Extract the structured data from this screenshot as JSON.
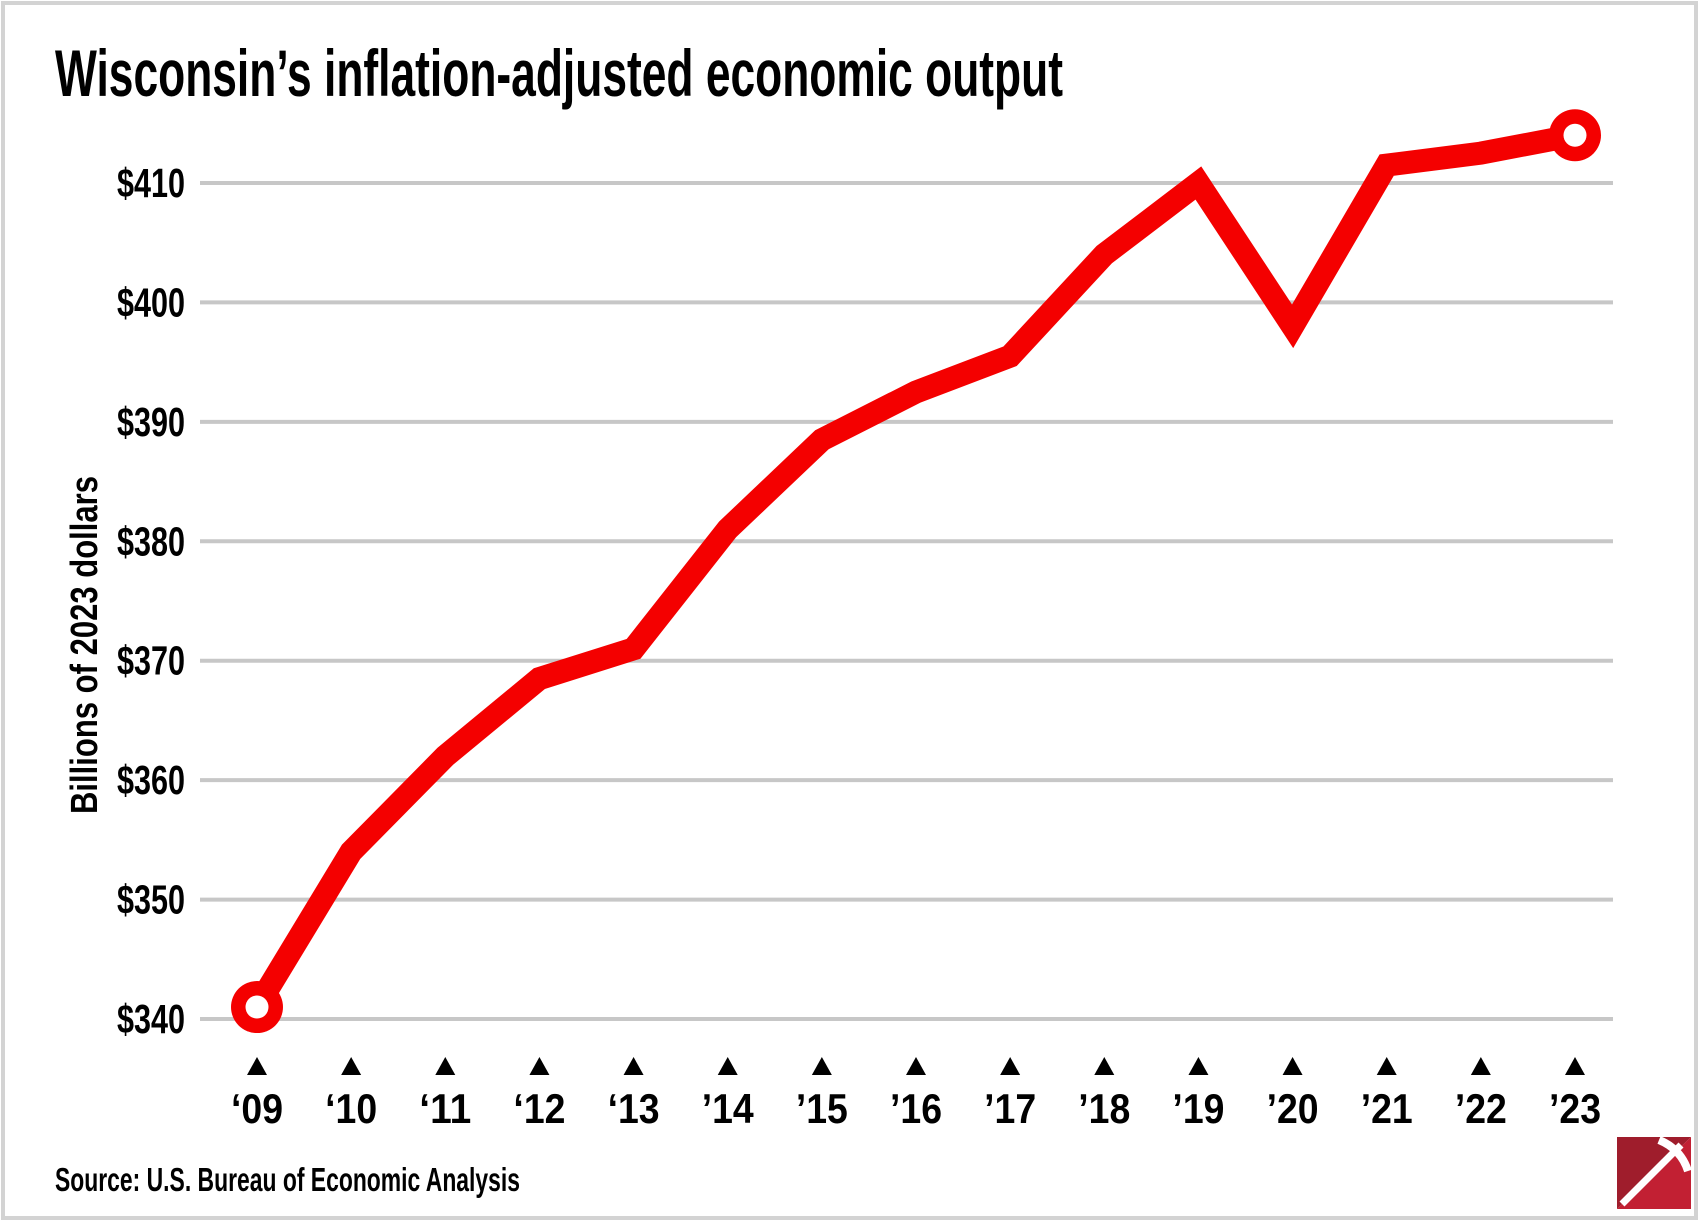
{
  "page": {
    "source": "Source: U.S. Bureau of Economic Analysis",
    "logo": "pickaxe-logo",
    "border_color": "#d3d3d3"
  },
  "chart_data": {
    "type": "line",
    "title": "Wisconsin’s inflation-adjusted economic output",
    "ylabel": "Billions of 2023 dollars",
    "xlabel": "",
    "categories": [
      "‘09",
      "‘10",
      "‘11",
      "‘12",
      "‘13",
      "’14",
      "’15",
      "’16",
      "’17",
      "’18",
      "’19",
      "’20",
      "’21",
      "’22",
      "’23"
    ],
    "values": [
      341,
      354,
      362,
      368.5,
      371,
      381,
      388.5,
      392.5,
      395.5,
      404,
      410,
      398,
      411.5,
      412.5,
      414
    ],
    "y_tick_labels": [
      "$410",
      "$400",
      "$390",
      "$380",
      "$370",
      "$360",
      "$350",
      "$340"
    ],
    "y_tick_values": [
      410,
      400,
      390,
      380,
      370,
      360,
      350,
      340
    ],
    "ylim": [
      334,
      417.5
    ],
    "grid": true,
    "legend": "none",
    "marker": "ring-at-endpoints",
    "line_color": "#f40000",
    "grid_color": "#c7c7c7",
    "tick_marker": "black-triangle-up"
  }
}
